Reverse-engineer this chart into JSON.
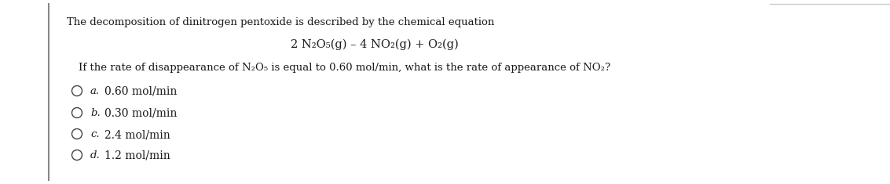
{
  "background_color": "#ffffff",
  "title_text": "The decomposition of dinitrogen pentoxide is described by the chemical equation",
  "equation_text": "2 N₂O₅(g) – 4 NO₂(g) + O₂(g)",
  "question_text": "If the rate of disappearance of N₂O₅ is equal to 0.60 mol/min, what is the rate of appearance of NO₂?",
  "options": [
    {
      "label": "a.",
      "text": "0.60 mol/min"
    },
    {
      "label": "b.",
      "text": "0.30 mol/min"
    },
    {
      "label": "c.",
      "text": "2.4 mol/min"
    },
    {
      "label": "d.",
      "text": "1.2 mol/min"
    }
  ],
  "font_size_title": 9.5,
  "font_size_equation": 10.5,
  "font_size_question": 9.5,
  "font_size_options_label": 9.5,
  "font_size_options_text": 10.0,
  "font_color": "#1a1a1a",
  "border_color": "#888888"
}
